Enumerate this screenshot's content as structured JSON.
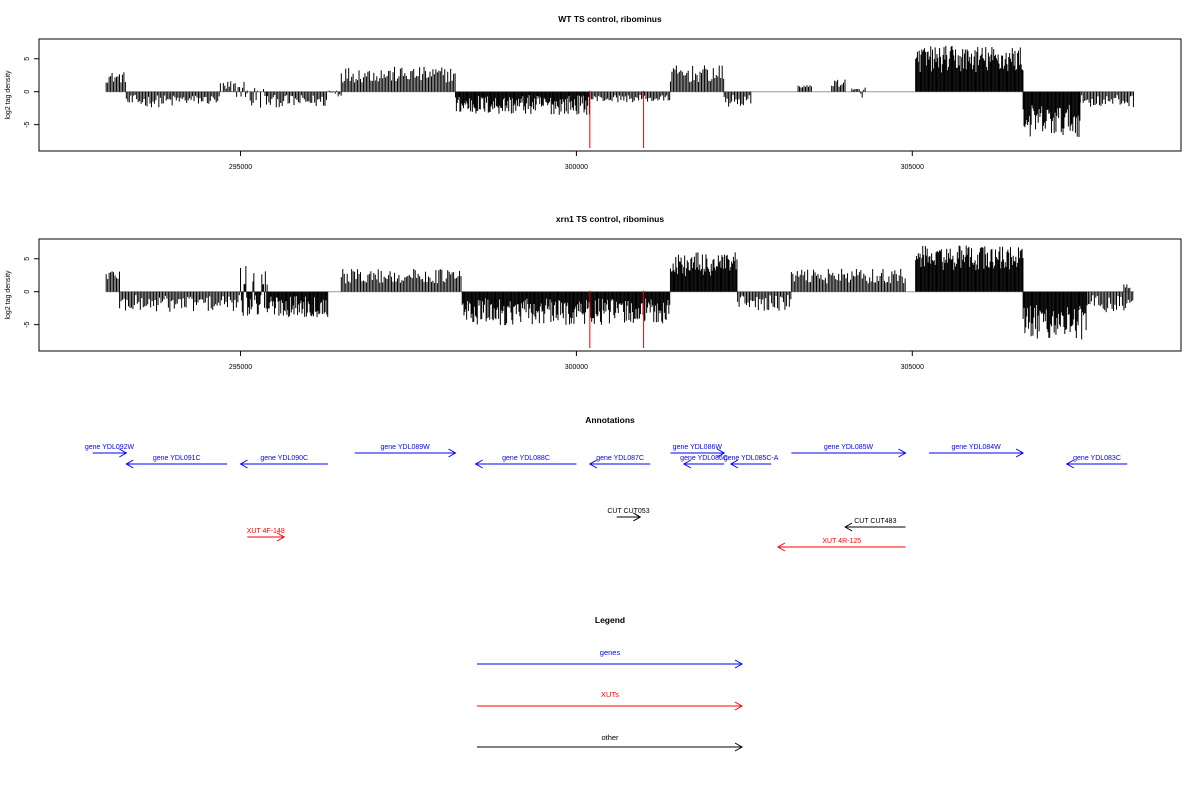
{
  "colors": {
    "bar": "#000000",
    "baseline": "#999999",
    "marker": "#ff0000",
    "genes": "#0000ff",
    "xuts": "#ff0000",
    "other": "#000000"
  },
  "chart_data": [
    {
      "type": "bar",
      "title": "WT TS control, ribominus",
      "ylabel": "log2 tag density",
      "xlim": [
        292000,
        309000
      ],
      "ylim": [
        -9,
        8
      ],
      "xticks": [
        295000,
        300000,
        305000
      ],
      "xtick_labels": [
        "295000",
        "300000",
        "305000"
      ],
      "yticks": [
        -5,
        0,
        5
      ],
      "ytick_labels": [
        "-5",
        "0",
        "5"
      ],
      "markers_x": [
        300200,
        301000
      ],
      "grid": false,
      "segments": [
        {
          "start": 293000,
          "end": 293300,
          "min": 0.8,
          "max": 3.0
        },
        {
          "start": 293300,
          "end": 294000,
          "min": -3.0,
          "max": -0.5
        },
        {
          "start": 294000,
          "end": 294700,
          "min": -2.5,
          "max": -0.5
        },
        {
          "start": 294700,
          "end": 295100,
          "min": -2.0,
          "max": 1.8
        },
        {
          "start": 295100,
          "end": 295400,
          "min": -4.0,
          "max": 1.0
        },
        {
          "start": 295400,
          "end": 296300,
          "min": -3.0,
          "max": -0.5
        },
        {
          "start": 296300,
          "end": 296500,
          "min": -1.5,
          "max": 0.8
        },
        {
          "start": 296500,
          "end": 298200,
          "min": 0.6,
          "max": 3.8
        },
        {
          "start": 298200,
          "end": 300200,
          "min": -4.5,
          "max": -0.5
        },
        {
          "start": 300200,
          "end": 301400,
          "min": -2.0,
          "max": -0.5
        },
        {
          "start": 301400,
          "end": 302200,
          "min": 0.5,
          "max": 4.0
        },
        {
          "start": 302200,
          "end": 302600,
          "min": -3.0,
          "max": -0.5
        },
        {
          "start": 303300,
          "end": 303500,
          "min": 0.5,
          "max": 1.0
        },
        {
          "start": 303800,
          "end": 304000,
          "min": 0.3,
          "max": 2.0
        },
        {
          "start": 304100,
          "end": 304300,
          "min": -1.5,
          "max": 0.8
        },
        {
          "start": 305050,
          "end": 306650,
          "min": 1.5,
          "max": 7.0
        },
        {
          "start": 306650,
          "end": 307500,
          "min": -8.5,
          "max": -2.0
        },
        {
          "start": 307500,
          "end": 308300,
          "min": -3.0,
          "max": -0.5
        }
      ]
    },
    {
      "type": "bar",
      "title": "xrn1 TS control, ribominus",
      "ylabel": "log2 tag density",
      "xlim": [
        292000,
        309000
      ],
      "ylim": [
        -9,
        8
      ],
      "xticks": [
        295000,
        300000,
        305000
      ],
      "xtick_labels": [
        "295000",
        "300000",
        "305000"
      ],
      "yticks": [
        -5,
        0,
        5
      ],
      "ytick_labels": [
        "-5",
        "0",
        "5"
      ],
      "markers_x": [
        300200,
        301000
      ],
      "grid": false,
      "segments": [
        {
          "start": 293000,
          "end": 293200,
          "min": 1.0,
          "max": 3.5
        },
        {
          "start": 293200,
          "end": 295000,
          "min": -4.0,
          "max": -0.5
        },
        {
          "start": 295000,
          "end": 295400,
          "min": -7.0,
          "max": 4.0
        },
        {
          "start": 295400,
          "end": 296300,
          "min": -5.0,
          "max": -0.5
        },
        {
          "start": 296500,
          "end": 298300,
          "min": 0.5,
          "max": 3.5
        },
        {
          "start": 298300,
          "end": 301400,
          "min": -6.5,
          "max": -1.0
        },
        {
          "start": 301400,
          "end": 302400,
          "min": 1.0,
          "max": 6.0
        },
        {
          "start": 302400,
          "end": 303200,
          "min": -4.0,
          "max": -0.5
        },
        {
          "start": 303200,
          "end": 304900,
          "min": 0.5,
          "max": 3.5
        },
        {
          "start": 305050,
          "end": 306650,
          "min": 2.0,
          "max": 7.0
        },
        {
          "start": 306650,
          "end": 307600,
          "min": -9.0,
          "max": -2.0
        },
        {
          "start": 307600,
          "end": 308300,
          "min": -4.0,
          "max": -0.5
        },
        {
          "start": 308150,
          "end": 308250,
          "min": 0.3,
          "max": 1.2
        }
      ]
    }
  ],
  "annotations": {
    "title": "Annotations",
    "xlim": [
      292000,
      309000
    ],
    "features": [
      {
        "label": "gene YDL092W",
        "start": 292800,
        "end": 293300,
        "strand": "+",
        "kind": "gene",
        "row": 0,
        "label_anchor": "middle"
      },
      {
        "label": "gene YDL091C",
        "start": 293300,
        "end": 294800,
        "strand": "-",
        "kind": "gene",
        "row": 1,
        "label_anchor": "middle"
      },
      {
        "label": "gene YDL090C",
        "start": 295000,
        "end": 296300,
        "strand": "-",
        "kind": "gene",
        "row": 1,
        "label_anchor": "middle"
      },
      {
        "label": "gene YDL089W",
        "start": 296700,
        "end": 298200,
        "strand": "+",
        "kind": "gene",
        "row": 0,
        "label_anchor": "middle"
      },
      {
        "label": "gene YDL088C",
        "start": 298500,
        "end": 300000,
        "strand": "-",
        "kind": "gene",
        "row": 1,
        "label_anchor": "middle"
      },
      {
        "label": "gene YDL087C",
        "start": 300200,
        "end": 301100,
        "strand": "-",
        "kind": "gene",
        "row": 1,
        "label_anchor": "middle"
      },
      {
        "label": "gene YDL086W",
        "start": 301400,
        "end": 302200,
        "strand": "+",
        "kind": "gene",
        "row": 0,
        "label_anchor": "middle"
      },
      {
        "label": "gene YDL086C",
        "start": 301600,
        "end": 302200,
        "strand": "-",
        "kind": "gene",
        "row": 1,
        "label_anchor": "middle"
      },
      {
        "label": "gene YDL085C-A",
        "start": 302300,
        "end": 302900,
        "strand": "-",
        "kind": "gene",
        "row": 1,
        "label_anchor": "middle"
      },
      {
        "label": "gene YDL085W",
        "start": 303200,
        "end": 304900,
        "strand": "+",
        "kind": "gene",
        "row": 0,
        "label_anchor": "middle"
      },
      {
        "label": "gene YDL084W",
        "start": 305250,
        "end": 306650,
        "strand": "+",
        "kind": "gene",
        "row": 0,
        "label_anchor": "middle"
      },
      {
        "label": "gene YDL083C",
        "start": 307300,
        "end": 308200,
        "strand": "-",
        "kind": "gene",
        "row": 1,
        "label_anchor": "middle"
      },
      {
        "label": "CUT CUT053",
        "start": 300600,
        "end": 300950,
        "strand": "+",
        "kind": "other",
        "row": 2,
        "label_anchor": "middle"
      },
      {
        "label": "CUT CUT483",
        "start": 304000,
        "end": 304900,
        "strand": "-",
        "kind": "other",
        "row": 3,
        "label_anchor": "middle"
      },
      {
        "label": "XUT 4F-148",
        "start": 295100,
        "end": 295650,
        "strand": "+",
        "kind": "xut",
        "row": 4,
        "label_anchor": "middle"
      },
      {
        "label": "XUT 4R-125",
        "start": 303000,
        "end": 304900,
        "strand": "-",
        "kind": "xut",
        "row": 5,
        "label_anchor": "middle"
      }
    ]
  },
  "legend": {
    "title": "Legend",
    "items": [
      {
        "label": "genes",
        "kind": "gene"
      },
      {
        "label": "XUTs",
        "kind": "xut"
      },
      {
        "label": "other",
        "kind": "other"
      }
    ]
  }
}
